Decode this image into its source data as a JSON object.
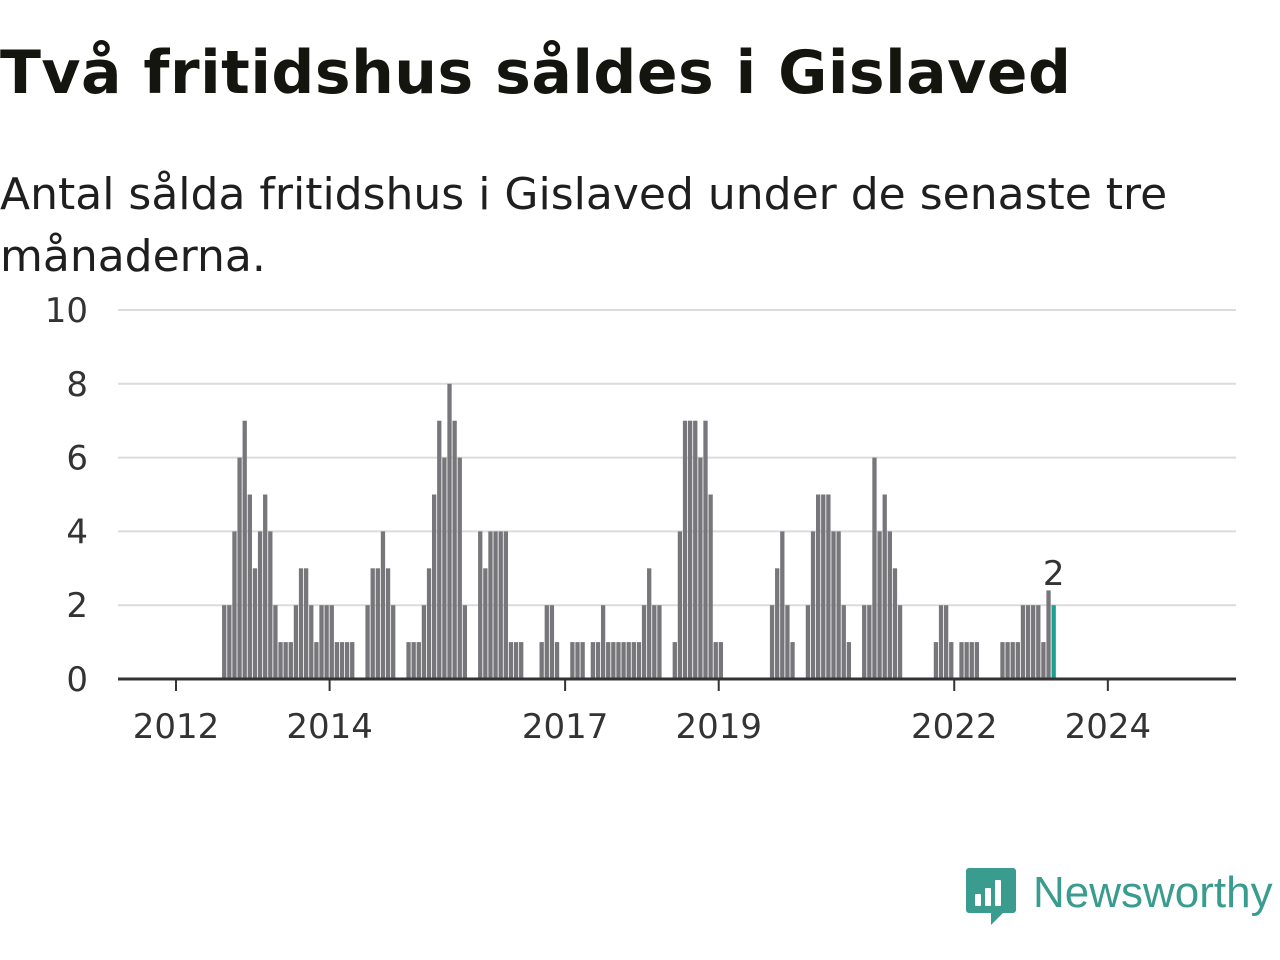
{
  "header": {
    "title": "Två fritidshus såldes i Gislaved",
    "subtitle": "Antal sålda fritidshus i Gislaved under de senaste tre månaderna."
  },
  "brand": {
    "name": "Newsworthy",
    "color": "#3a9c8f",
    "icon": "chart-bubble-icon"
  },
  "chart_data": {
    "type": "bar",
    "title": "Två fritidshus såldes i Gislaved",
    "subtitle": "Antal sålda fritidshus i Gislaved under de senaste tre månaderna.",
    "xlabel": "",
    "ylabel": "",
    "ylim": [
      0,
      10
    ],
    "yticks": [
      "0",
      "2",
      "4",
      "6",
      "8",
      "10"
    ],
    "xticks": [
      "2012",
      "2014",
      "2017",
      "2019",
      "2022",
      "2024"
    ],
    "grid": true,
    "legend": "none",
    "bar_color": "#77767b",
    "highlight_color": "#1aa091",
    "last_value_label": "2",
    "series": [
      {
        "values": [
          0,
          0,
          0,
          0,
          0,
          0,
          0,
          0,
          0,
          2,
          2,
          4,
          6,
          7,
          5,
          3,
          4,
          5,
          4,
          2,
          1,
          1,
          1,
          2,
          3,
          3,
          2,
          1,
          2,
          2,
          2,
          1,
          1,
          1,
          1,
          0,
          0,
          2,
          3,
          3,
          4,
          3,
          2,
          0,
          0,
          1,
          1,
          1,
          2,
          3,
          5,
          7,
          6,
          8,
          7,
          6,
          2,
          0,
          0,
          4,
          3,
          4,
          4,
          4,
          4,
          1,
          1,
          1,
          0,
          0,
          0,
          1,
          2,
          2,
          1,
          0,
          0,
          1,
          1,
          1,
          0,
          1,
          1,
          2,
          1,
          1,
          1,
          1,
          1,
          1,
          1,
          2,
          3,
          2,
          2,
          0,
          0,
          1,
          4,
          7,
          7,
          7,
          6,
          7,
          5,
          1,
          1,
          0,
          0,
          0,
          0,
          0,
          0,
          0,
          0,
          0,
          2,
          3,
          4,
          2,
          1,
          0,
          0,
          2,
          4,
          5,
          5,
          5,
          4,
          4,
          2,
          1,
          0,
          0,
          2,
          2,
          6,
          4,
          5,
          4,
          3,
          2,
          0,
          0,
          0,
          0,
          0,
          0,
          1,
          2,
          2,
          1,
          0,
          1,
          1,
          1,
          1,
          0,
          0,
          0,
          0,
          1,
          1,
          1,
          1,
          2,
          2,
          2,
          2,
          1,
          2.4,
          2
        ]
      }
    ]
  }
}
